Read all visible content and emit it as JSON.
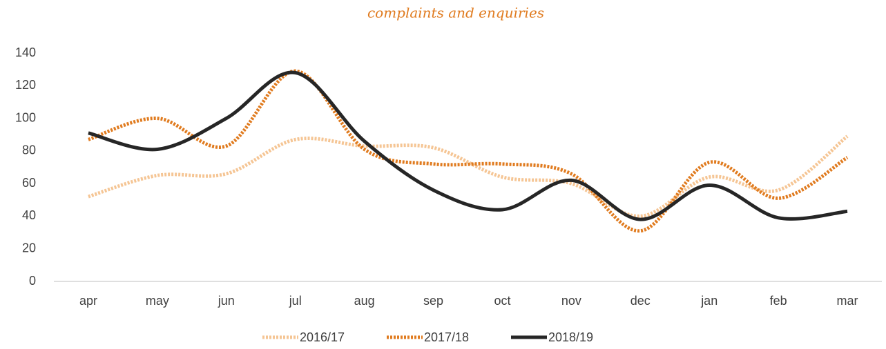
{
  "chart_data": {
    "type": "line",
    "title": "complaints and enquiries",
    "categories": [
      "apr",
      "may",
      "jun",
      "jul",
      "aug",
      "sep",
      "oct",
      "nov",
      "dec",
      "jan",
      "feb",
      "mar"
    ],
    "series": [
      {
        "name": "2016/17",
        "color": "#f5c594",
        "style": "dotted",
        "values": [
          52,
          65,
          66,
          87,
          83,
          82,
          64,
          60,
          40,
          64,
          56,
          89
        ]
      },
      {
        "name": "2017/18",
        "color": "#e07b1f",
        "style": "dotted",
        "values": [
          87,
          100,
          83,
          129,
          81,
          72,
          72,
          66,
          31,
          73,
          51,
          76
        ]
      },
      {
        "name": "2018/19",
        "color": "#262626",
        "style": "solid",
        "values": [
          91,
          81,
          100,
          128,
          86,
          56,
          44,
          62,
          38,
          59,
          39,
          43
        ]
      }
    ],
    "ylim": [
      0,
      140
    ],
    "yticks": [
      0,
      20,
      40,
      60,
      80,
      100,
      120,
      140
    ],
    "legend": "bottom",
    "smooth": true
  }
}
